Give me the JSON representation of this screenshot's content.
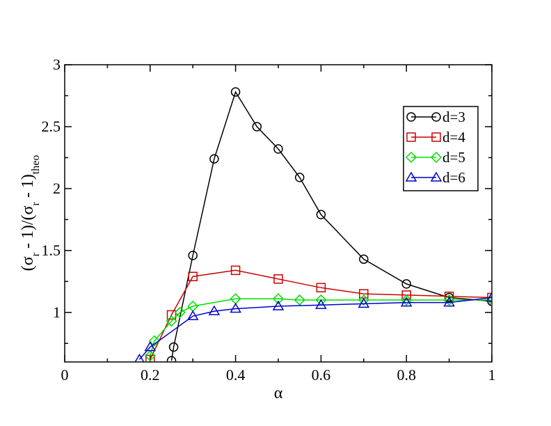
{
  "chart_data": {
    "type": "line",
    "xlabel": "α",
    "ylabel": {
      "parts": [
        {
          "text": "(σ",
          "sub": false
        },
        {
          "text": "r",
          "sub": true
        },
        {
          "text": " - 1)/(σ",
          "sub": false
        },
        {
          "text": "r",
          "sub": true
        },
        {
          "text": " - 1)",
          "sub": false
        },
        {
          "text": "theo",
          "sub": true
        }
      ]
    },
    "xlim": [
      0,
      1
    ],
    "ylim": [
      0.6,
      3
    ],
    "x_major_ticks": [
      0,
      0.2,
      0.4,
      0.6,
      0.8,
      1
    ],
    "x_tick_labels": [
      "0",
      "0.2",
      "0.4",
      "0.6",
      "0.8",
      "1"
    ],
    "x_minor_step": 0.1,
    "y_major_ticks": [
      1,
      1.5,
      2,
      2.5,
      3
    ],
    "y_tick_labels": [
      "1",
      "1.5",
      "2",
      "2.5",
      "3"
    ],
    "y_minor_step": 0.25,
    "grid": false,
    "legend_position": "top-right",
    "series": [
      {
        "name": "d=3",
        "color": "#000000",
        "marker": "circle",
        "x": [
          0.25,
          0.255,
          0.3,
          0.35,
          0.4,
          0.45,
          0.5,
          0.55,
          0.6,
          0.7,
          0.8,
          0.9,
          1.0
        ],
        "y": [
          0.61,
          0.72,
          1.46,
          2.24,
          2.78,
          2.5,
          2.32,
          2.09,
          1.79,
          1.43,
          1.23,
          1.12,
          1.09
        ]
      },
      {
        "name": "d=4",
        "color": "#cc0000",
        "marker": "square",
        "x": [
          0.2,
          0.25,
          0.3,
          0.4,
          0.5,
          0.6,
          0.7,
          0.8,
          0.9,
          1.0
        ],
        "y": [
          0.62,
          0.98,
          1.29,
          1.34,
          1.27,
          1.2,
          1.15,
          1.14,
          1.13,
          1.12
        ]
      },
      {
        "name": "d=5",
        "color": "#00dd00",
        "marker": "diamond",
        "x": [
          0.2,
          0.21,
          0.25,
          0.27,
          0.3,
          0.4,
          0.5,
          0.55,
          0.6,
          0.7,
          0.8,
          0.9,
          1.0
        ],
        "y": [
          0.65,
          0.77,
          0.93,
          1.0,
          1.05,
          1.11,
          1.11,
          1.1,
          1.1,
          1.1,
          1.1,
          1.1,
          1.1
        ]
      },
      {
        "name": "d=6",
        "color": "#0000cc",
        "marker": "triangle",
        "x": [
          0.175,
          0.2,
          0.3,
          0.35,
          0.4,
          0.5,
          0.6,
          0.7,
          0.8,
          0.9,
          1.0
        ],
        "y": [
          0.62,
          0.72,
          0.97,
          1.01,
          1.03,
          1.05,
          1.06,
          1.07,
          1.08,
          1.08,
          1.12
        ]
      }
    ]
  }
}
